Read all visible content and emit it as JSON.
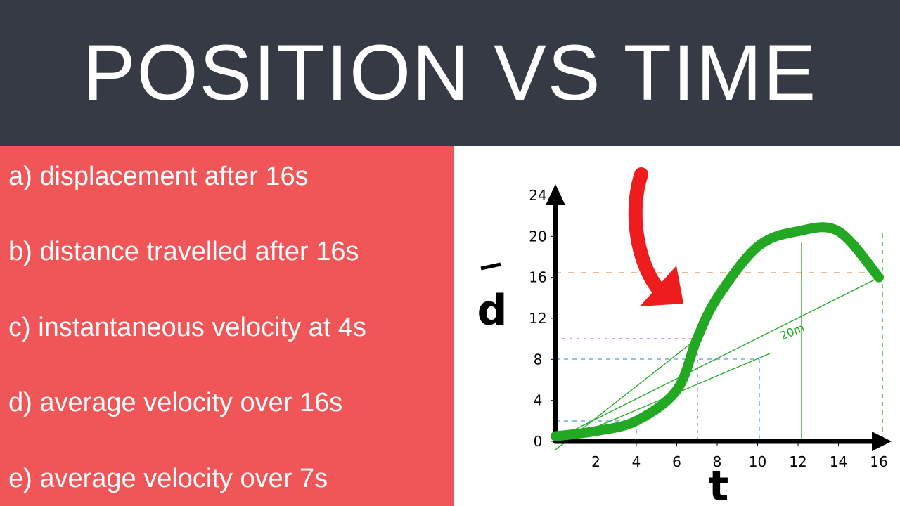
{
  "header": {
    "title": "POSITION VS TIME"
  },
  "questions": [
    "a) displacement after 16s",
    "b) distance travelled after 16s",
    "c) instantaneous velocity at 4s",
    "d) average velocity over 16s",
    "e) average velocity over 7s"
  ],
  "chart_data": {
    "type": "line",
    "x_label": "t",
    "y_label": "d",
    "x": [
      0,
      2,
      4,
      6,
      7,
      8,
      10,
      12,
      14,
      16
    ],
    "values": [
      0.5,
      1,
      2,
      5,
      10,
      14,
      19,
      20.5,
      20.5,
      16
    ],
    "color": "#22a822",
    "xlim": [
      0,
      16
    ],
    "ylim": [
      0,
      24
    ],
    "xticks": [
      2,
      4,
      6,
      8,
      10,
      12,
      14,
      16
    ],
    "yticks": [
      0,
      4,
      8,
      12,
      16,
      20,
      24
    ],
    "annotations": [
      "20m"
    ]
  }
}
